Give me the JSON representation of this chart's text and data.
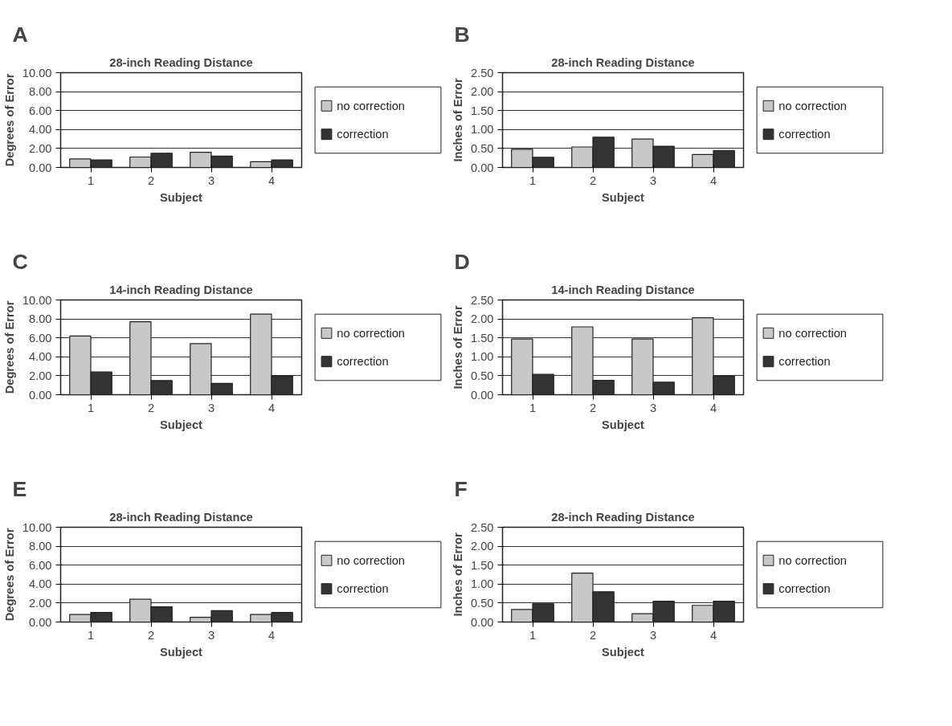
{
  "chart_data": [
    {
      "type": "bar",
      "annotations": [
        "A"
      ],
      "title": "28-inch Reading Distance",
      "xlabel": "Subject",
      "ylabel": "Degrees of Error",
      "categories": [
        "1",
        "2",
        "3",
        "4"
      ],
      "ylim": [
        0,
        10
      ],
      "yticks": [
        {
          "value": 0,
          "label": "0.00"
        },
        {
          "value": 2,
          "label": "2.00"
        },
        {
          "value": 4,
          "label": "4.00"
        },
        {
          "value": 6,
          "label": "6.00"
        },
        {
          "value": 8,
          "label": "8.00"
        },
        {
          "value": 10,
          "label": "10.00"
        }
      ],
      "grid": "y",
      "legend": "right",
      "series": [
        {
          "name": "no correction",
          "color": "#c8c8c8",
          "values": [
            0.9,
            1.1,
            1.6,
            0.6
          ]
        },
        {
          "name": "correction",
          "color": "#333333",
          "values": [
            0.8,
            1.5,
            1.2,
            0.8
          ]
        }
      ]
    },
    {
      "type": "bar",
      "annotations": [
        "B"
      ],
      "title": "28-inch Reading Distance",
      "xlabel": "Subject",
      "ylabel": "Inches of Error",
      "categories": [
        "1",
        "2",
        "3",
        "4"
      ],
      "ylim": [
        0,
        2.5
      ],
      "yticks": [
        {
          "value": 0,
          "label": "0.00"
        },
        {
          "value": 0.5,
          "label": "0.50"
        },
        {
          "value": 1,
          "label": "1.00"
        },
        {
          "value": 1.5,
          "label": "1.50"
        },
        {
          "value": 2,
          "label": "2.00"
        },
        {
          "value": 2.5,
          "label": "2.50"
        }
      ],
      "grid": "y",
      "legend": "right",
      "series": [
        {
          "name": "no correction",
          "color": "#c8c8c8",
          "values": [
            0.48,
            0.54,
            0.75,
            0.34
          ]
        },
        {
          "name": "correction",
          "color": "#333333",
          "values": [
            0.27,
            0.8,
            0.56,
            0.45
          ]
        }
      ]
    },
    {
      "type": "bar",
      "annotations": [
        "C"
      ],
      "title": "14-inch Reading Distance",
      "xlabel": "Subject",
      "ylabel": "Degrees of Error",
      "categories": [
        "1",
        "2",
        "3",
        "4"
      ],
      "ylim": [
        0,
        10
      ],
      "yticks": [
        {
          "value": 0,
          "label": "0.00"
        },
        {
          "value": 2,
          "label": "2.00"
        },
        {
          "value": 4,
          "label": "4.00"
        },
        {
          "value": 6,
          "label": "6.00"
        },
        {
          "value": 8,
          "label": "8.00"
        },
        {
          "value": 10,
          "label": "10.00"
        }
      ],
      "grid": "y",
      "legend": "right",
      "series": [
        {
          "name": "no correction",
          "color": "#c8c8c8",
          "values": [
            6.2,
            7.7,
            5.4,
            8.5
          ]
        },
        {
          "name": "correction",
          "color": "#333333",
          "values": [
            2.4,
            1.5,
            1.2,
            2.0
          ]
        }
      ]
    },
    {
      "type": "bar",
      "annotations": [
        "D"
      ],
      "title": "14-inch Reading Distance",
      "xlabel": "Subject",
      "ylabel": "Inches of Error",
      "categories": [
        "1",
        "2",
        "3",
        "4"
      ],
      "ylim": [
        0,
        2.5
      ],
      "yticks": [
        {
          "value": 0,
          "label": "0.00"
        },
        {
          "value": 0.5,
          "label": "0.50"
        },
        {
          "value": 1,
          "label": "1.00"
        },
        {
          "value": 1.5,
          "label": "1.50"
        },
        {
          "value": 2,
          "label": "2.00"
        },
        {
          "value": 2.5,
          "label": "2.50"
        }
      ],
      "grid": "y",
      "legend": "right",
      "series": [
        {
          "name": "no correction",
          "color": "#c8c8c8",
          "values": [
            1.47,
            1.79,
            1.47,
            2.03
          ]
        },
        {
          "name": "correction",
          "color": "#333333",
          "values": [
            0.54,
            0.38,
            0.33,
            0.49
          ]
        }
      ]
    },
    {
      "type": "bar",
      "annotations": [
        "E"
      ],
      "title": "28-inch Reading Distance",
      "xlabel": "Subject",
      "ylabel": "Degrees of Error",
      "categories": [
        "1",
        "2",
        "3",
        "4"
      ],
      "ylim": [
        0,
        10
      ],
      "yticks": [
        {
          "value": 0,
          "label": "0.00"
        },
        {
          "value": 2,
          "label": "2.00"
        },
        {
          "value": 4,
          "label": "4.00"
        },
        {
          "value": 6,
          "label": "6.00"
        },
        {
          "value": 8,
          "label": "8.00"
        },
        {
          "value": 10,
          "label": "10.00"
        }
      ],
      "grid": "y",
      "legend": "right",
      "series": [
        {
          "name": "no correction",
          "color": "#c8c8c8",
          "values": [
            0.8,
            2.4,
            0.5,
            0.8
          ]
        },
        {
          "name": "correction",
          "color": "#333333",
          "values": [
            1.0,
            1.6,
            1.2,
            1.0
          ]
        }
      ]
    },
    {
      "type": "bar",
      "annotations": [
        "F"
      ],
      "title": "28-inch Reading Distance",
      "xlabel": "Subject",
      "ylabel": "Inches of Error",
      "categories": [
        "1",
        "2",
        "3",
        "4"
      ],
      "ylim": [
        0,
        2.5
      ],
      "yticks": [
        {
          "value": 0,
          "label": "0.00"
        },
        {
          "value": 0.5,
          "label": "0.50"
        },
        {
          "value": 1,
          "label": "1.00"
        },
        {
          "value": 1.5,
          "label": "1.50"
        },
        {
          "value": 2,
          "label": "2.00"
        },
        {
          "value": 2.5,
          "label": "2.50"
        }
      ],
      "grid": "y",
      "legend": "right",
      "series": [
        {
          "name": "no correction",
          "color": "#c8c8c8",
          "values": [
            0.33,
            1.29,
            0.22,
            0.44
          ]
        },
        {
          "name": "correction",
          "color": "#333333",
          "values": [
            0.48,
            0.8,
            0.55,
            0.55
          ]
        }
      ]
    }
  ]
}
